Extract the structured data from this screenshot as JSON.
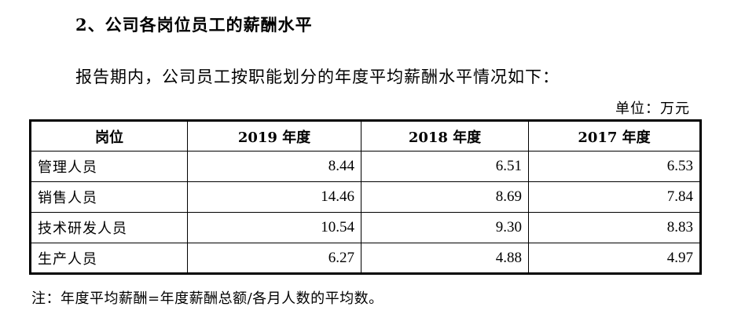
{
  "heading": "2、公司各岗位员工的薪酬水平",
  "paragraph": "报告期内，公司员工按职能划分的年度平均薪酬水平情况如下：",
  "unit": "单位：万元",
  "table": {
    "headers": [
      "岗位",
      "2019 年度",
      "2018 年度",
      "2017 年度"
    ],
    "rows": [
      [
        "管理人员",
        "8.44",
        "6.51",
        "6.53"
      ],
      [
        "销售人员",
        "14.46",
        "8.69",
        "7.84"
      ],
      [
        "技术研发人员",
        "10.54",
        "9.30",
        "8.83"
      ],
      [
        "生产人员",
        "6.27",
        "4.88",
        "4.97"
      ]
    ]
  },
  "note": "注：年度平均薪酬=年度薪酬总额/各月人数的平均数。"
}
